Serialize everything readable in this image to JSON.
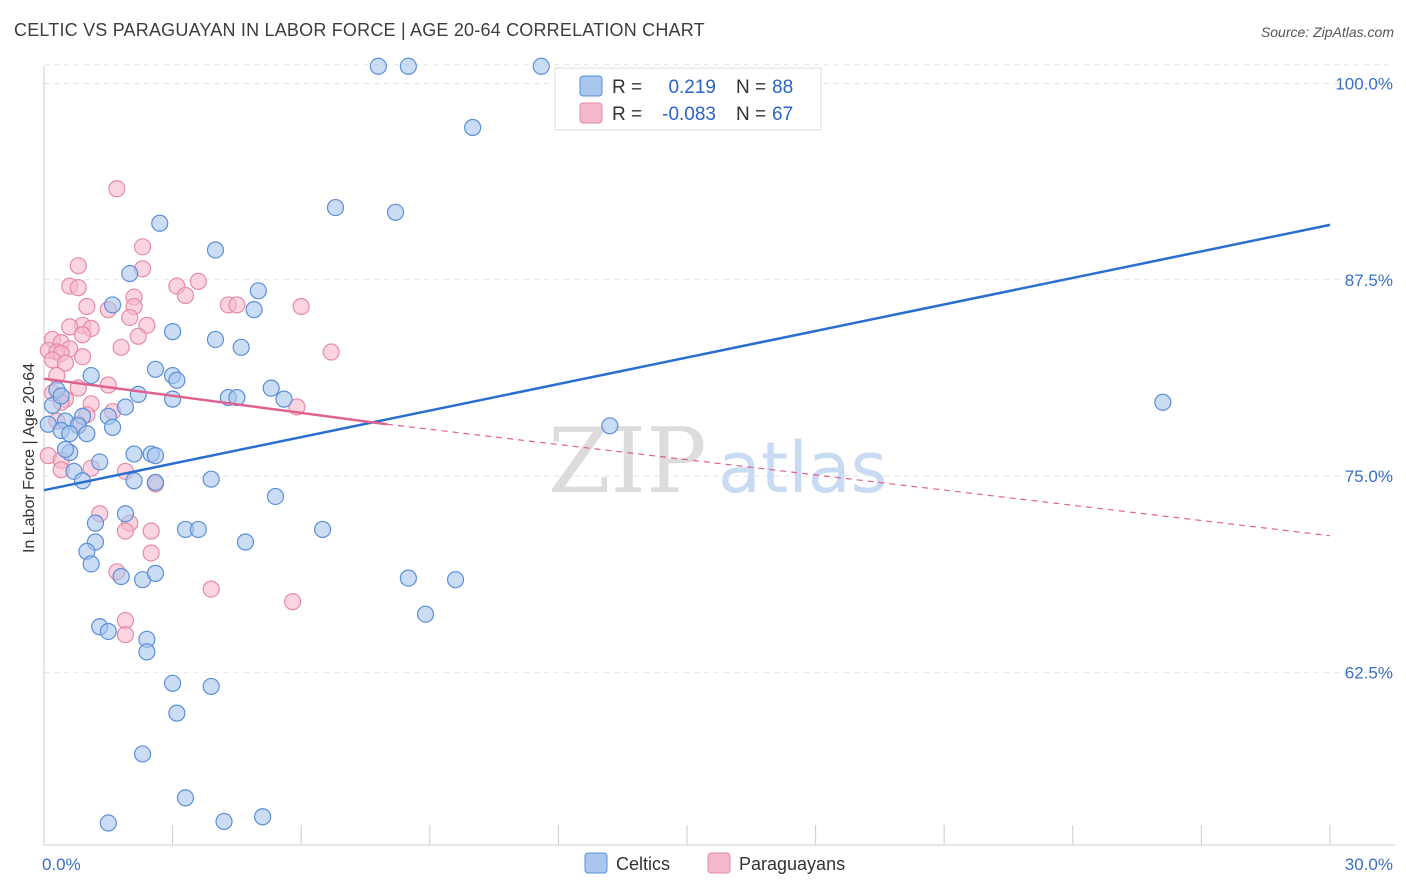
{
  "header": {
    "title": "CELTIC VS PARAGUAYAN IN LABOR FORCE | AGE 20-64 CORRELATION CHART",
    "source": "Source: ZipAtlas.com"
  },
  "legend": {
    "rows": [
      {
        "r_label": "R =",
        "r_value": "0.219",
        "n_label": "N =",
        "n_value": "88"
      },
      {
        "r_label": "R =",
        "r_value": "-0.083",
        "n_label": "N =",
        "n_value": "67"
      }
    ]
  },
  "bottom_legend": [
    "Celtics",
    "Paraguayans"
  ],
  "watermark": {
    "zip": "ZIP",
    "atlas": "atlas"
  },
  "colors": {
    "celtics_fill": "#a9c6ef",
    "celtics_stroke": "#5b8fd8",
    "celtics_line": "#2a6fd0",
    "paraguayans_fill": "#f6b9cc",
    "paraguayans_stroke": "#e68aa8",
    "paraguayans_line": "#e0628e",
    "grid": "#e3e3e3",
    "axis_label": "#3a6fc4"
  },
  "chart_data": {
    "type": "scatter",
    "title": "CELTIC VS PARAGUAYAN IN LABOR FORCE | AGE 20-64 CORRELATION CHART",
    "xlabel": "",
    "ylabel": "In Labor Force | Age 20-64",
    "xlim": [
      0,
      30
    ],
    "ylim": [
      51.5,
      101.5
    ],
    "x_tick_labels": [
      "0.0%",
      "30.0%"
    ],
    "y_ticks": [
      62.5,
      75.0,
      87.5,
      100.0
    ],
    "y_tick_labels": [
      "62.5%",
      "75.0%",
      "87.5%",
      "100.0%"
    ],
    "grid": "horizontal dashed",
    "legend_position": "top-center",
    "series": [
      {
        "name": "Celtics",
        "R": 0.219,
        "N": 88,
        "trend": {
          "x": [
            0,
            30
          ],
          "y": [
            74.1,
            91.0
          ]
        },
        "points": [
          [
            7.8,
            101.1
          ],
          [
            8.5,
            101.1
          ],
          [
            11.6,
            101.1
          ],
          [
            10.0,
            97.2
          ],
          [
            6.8,
            92.1
          ],
          [
            8.2,
            91.8
          ],
          [
            2.7,
            91.1
          ],
          [
            4.0,
            89.4
          ],
          [
            2.0,
            87.9
          ],
          [
            5.0,
            86.8
          ],
          [
            1.6,
            85.9
          ],
          [
            4.9,
            85.6
          ],
          [
            3.0,
            84.2
          ],
          [
            4.0,
            83.7
          ],
          [
            4.6,
            83.2
          ],
          [
            1.1,
            81.4
          ],
          [
            2.6,
            81.8
          ],
          [
            3.0,
            81.4
          ],
          [
            3.1,
            81.1
          ],
          [
            5.3,
            80.6
          ],
          [
            2.2,
            80.2
          ],
          [
            0.3,
            80.5
          ],
          [
            4.3,
            80.0
          ],
          [
            4.5,
            80.0
          ],
          [
            3.0,
            79.9
          ],
          [
            5.6,
            79.9
          ],
          [
            1.9,
            79.4
          ],
          [
            0.2,
            79.5
          ],
          [
            0.4,
            80.1
          ],
          [
            0.9,
            78.8
          ],
          [
            1.5,
            78.8
          ],
          [
            0.5,
            78.5
          ],
          [
            0.1,
            78.3
          ],
          [
            0.8,
            78.2
          ],
          [
            1.6,
            78.1
          ],
          [
            0.4,
            77.9
          ],
          [
            1.0,
            77.7
          ],
          [
            0.6,
            77.7
          ],
          [
            13.2,
            78.2
          ],
          [
            26.1,
            79.7
          ],
          [
            0.6,
            76.5
          ],
          [
            0.5,
            76.7
          ],
          [
            2.1,
            76.4
          ],
          [
            2.5,
            76.4
          ],
          [
            2.6,
            76.3
          ],
          [
            1.3,
            75.9
          ],
          [
            0.7,
            75.3
          ],
          [
            0.9,
            74.7
          ],
          [
            2.1,
            74.7
          ],
          [
            2.6,
            74.6
          ],
          [
            3.9,
            74.8
          ],
          [
            5.4,
            73.7
          ],
          [
            1.9,
            72.6
          ],
          [
            1.2,
            72.0
          ],
          [
            3.3,
            71.6
          ],
          [
            3.6,
            71.6
          ],
          [
            6.5,
            71.6
          ],
          [
            1.2,
            70.8
          ],
          [
            4.7,
            70.8
          ],
          [
            1.0,
            70.2
          ],
          [
            1.1,
            69.4
          ],
          [
            1.8,
            68.6
          ],
          [
            2.3,
            68.4
          ],
          [
            2.6,
            68.8
          ],
          [
            8.5,
            68.5
          ],
          [
            9.6,
            68.4
          ],
          [
            8.9,
            66.2
          ],
          [
            1.3,
            65.4
          ],
          [
            1.5,
            65.1
          ],
          [
            2.4,
            64.6
          ],
          [
            2.4,
            63.8
          ],
          [
            3.0,
            61.8
          ],
          [
            3.9,
            61.6
          ],
          [
            3.1,
            59.9
          ],
          [
            2.3,
            57.3
          ],
          [
            3.3,
            54.5
          ],
          [
            1.5,
            52.9
          ],
          [
            4.2,
            53.0
          ],
          [
            5.1,
            53.3
          ]
        ]
      },
      {
        "name": "Paraguayans",
        "R": -0.083,
        "N": 67,
        "trend": {
          "x": [
            0,
            8.0
          ],
          "y": [
            81.2,
            78.3
          ]
        },
        "trend_dashed": {
          "x": [
            8.0,
            30
          ],
          "y": [
            78.3,
            71.2
          ]
        },
        "points": [
          [
            1.7,
            93.3
          ],
          [
            2.3,
            89.6
          ],
          [
            0.8,
            88.4
          ],
          [
            2.3,
            88.2
          ],
          [
            3.1,
            87.1
          ],
          [
            3.6,
            87.4
          ],
          [
            0.6,
            87.1
          ],
          [
            0.8,
            87.0
          ],
          [
            2.1,
            86.4
          ],
          [
            3.3,
            86.5
          ],
          [
            1.0,
            85.8
          ],
          [
            2.1,
            85.8
          ],
          [
            4.3,
            85.9
          ],
          [
            4.5,
            85.9
          ],
          [
            6.0,
            85.8
          ],
          [
            1.5,
            85.6
          ],
          [
            2.0,
            85.1
          ],
          [
            2.4,
            84.6
          ],
          [
            0.9,
            84.6
          ],
          [
            0.6,
            84.5
          ],
          [
            1.1,
            84.4
          ],
          [
            0.9,
            84.0
          ],
          [
            2.2,
            83.9
          ],
          [
            0.2,
            83.7
          ],
          [
            0.4,
            83.5
          ],
          [
            1.8,
            83.2
          ],
          [
            0.6,
            83.1
          ],
          [
            0.1,
            83.0
          ],
          [
            0.3,
            82.9
          ],
          [
            0.4,
            82.8
          ],
          [
            0.2,
            82.4
          ],
          [
            0.9,
            82.6
          ],
          [
            6.7,
            82.9
          ],
          [
            0.5,
            82.2
          ],
          [
            0.3,
            81.4
          ],
          [
            1.5,
            80.8
          ],
          [
            0.8,
            80.6
          ],
          [
            0.2,
            80.3
          ],
          [
            0.5,
            79.9
          ],
          [
            0.4,
            79.7
          ],
          [
            1.1,
            79.6
          ],
          [
            5.9,
            79.4
          ],
          [
            1.6,
            79.1
          ],
          [
            1.0,
            78.9
          ],
          [
            0.3,
            78.5
          ],
          [
            0.8,
            78.3
          ],
          [
            0.1,
            76.3
          ],
          [
            0.4,
            76.0
          ],
          [
            1.1,
            75.5
          ],
          [
            0.4,
            75.4
          ],
          [
            1.9,
            75.3
          ],
          [
            2.6,
            74.5
          ],
          [
            1.3,
            72.6
          ],
          [
            2.0,
            72.0
          ],
          [
            1.9,
            71.5
          ],
          [
            2.5,
            70.1
          ],
          [
            1.7,
            68.9
          ],
          [
            3.9,
            67.8
          ],
          [
            5.8,
            67.0
          ],
          [
            1.9,
            65.8
          ],
          [
            1.9,
            64.9
          ],
          [
            2.5,
            71.5
          ]
        ]
      }
    ]
  }
}
